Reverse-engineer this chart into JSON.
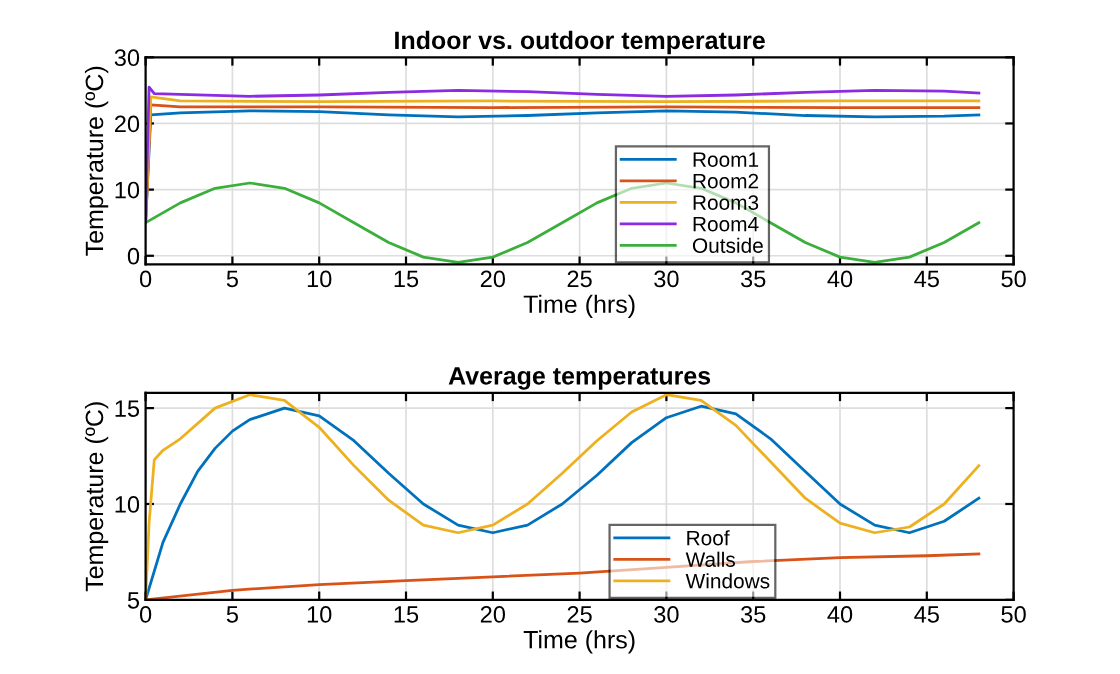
{
  "chart_data": [
    {
      "type": "line",
      "title": "Indoor vs. outdoor temperature",
      "xlabel": "Time (hrs)",
      "ylabel": "Temperature (ºC)",
      "xlim": [
        0,
        50
      ],
      "xticks": [
        0,
        5,
        10,
        15,
        20,
        25,
        30,
        35,
        40,
        45,
        50
      ],
      "ylim": [
        -1.3,
        30
      ],
      "yticks": [
        0,
        10,
        20,
        30
      ],
      "grid": true,
      "legend": "bottom",
      "series": [
        {
          "name": "Room1",
          "color": "#0072bd",
          "x": [
            0,
            0.3,
            2,
            6,
            10,
            14,
            18,
            22,
            26,
            30,
            34,
            38,
            42,
            46,
            48
          ],
          "values": [
            5,
            21.3,
            21.6,
            21.9,
            21.8,
            21.3,
            21.0,
            21.2,
            21.6,
            21.9,
            21.7,
            21.2,
            21.0,
            21.1,
            21.3
          ]
        },
        {
          "name": "Room2",
          "color": "#d95319",
          "x": [
            0,
            0.3,
            2,
            10,
            20,
            30,
            40,
            48
          ],
          "values": [
            5,
            22.8,
            22.5,
            22.5,
            22.4,
            22.5,
            22.4,
            22.4
          ]
        },
        {
          "name": "Room3",
          "color": "#edb120",
          "x": [
            0,
            0.3,
            2,
            10,
            20,
            30,
            40,
            48
          ],
          "values": [
            5,
            24,
            23.4,
            23.3,
            23.4,
            23.3,
            23.4,
            23.4
          ]
        },
        {
          "name": "Room4",
          "color": "#8b2be2",
          "x": [
            0,
            0.2,
            0.5,
            2,
            6,
            10,
            14,
            18,
            22,
            26,
            30,
            34,
            38,
            42,
            46,
            48
          ],
          "values": [
            5,
            25.5,
            24.5,
            24.4,
            24.1,
            24.3,
            24.7,
            25.0,
            24.8,
            24.4,
            24.1,
            24.3,
            24.7,
            25.0,
            24.9,
            24.6
          ]
        },
        {
          "name": "Outside",
          "color": "#3cae3c",
          "x": [
            0,
            2,
            4,
            6,
            8,
            10,
            12,
            14,
            16,
            18,
            20,
            22,
            24,
            26,
            28,
            30,
            32,
            34,
            36,
            38,
            40,
            42,
            44,
            46,
            48
          ],
          "values": [
            5,
            8,
            10.2,
            11,
            10.2,
            8,
            5,
            2,
            -0.2,
            -1,
            -0.2,
            2,
            5,
            8,
            10.2,
            11,
            10.2,
            8,
            5,
            2,
            -0.2,
            -1,
            -0.2,
            2,
            5
          ]
        }
      ]
    },
    {
      "type": "line",
      "title": "Average temperatures",
      "xlabel": "Time (hrs)",
      "ylabel": "Temperature (ºC)",
      "xlim": [
        0,
        50
      ],
      "xticks": [
        0,
        5,
        10,
        15,
        20,
        25,
        30,
        35,
        40,
        45,
        50
      ],
      "ylim": [
        5,
        15.8
      ],
      "yticks": [
        5,
        10,
        15
      ],
      "grid": true,
      "legend": "bottom",
      "series": [
        {
          "name": "Roof",
          "color": "#0072bd",
          "x": [
            0,
            1,
            2,
            3,
            4,
            5,
            6,
            8,
            10,
            12,
            14,
            16,
            18,
            20,
            22,
            24,
            26,
            28,
            30,
            32,
            34,
            36,
            38,
            40,
            42,
            44,
            46,
            48
          ],
          "values": [
            5,
            8,
            10,
            11.7,
            12.9,
            13.8,
            14.4,
            15,
            14.6,
            13.3,
            11.6,
            10,
            8.9,
            8.5,
            8.9,
            10,
            11.5,
            13.2,
            14.5,
            15.1,
            14.7,
            13.4,
            11.7,
            10,
            8.9,
            8.5,
            9.1,
            10.3
          ]
        },
        {
          "name": "Walls",
          "color": "#d95319",
          "x": [
            0,
            5,
            10,
            15,
            20,
            25,
            30,
            35,
            40,
            45,
            48
          ],
          "values": [
            5,
            5.5,
            5.8,
            6.0,
            6.2,
            6.4,
            6.7,
            7.0,
            7.2,
            7.3,
            7.4
          ]
        },
        {
          "name": "Windows",
          "color": "#edb120",
          "x": [
            0,
            0.2,
            0.5,
            1,
            2,
            4,
            6,
            8,
            10,
            12,
            14,
            16,
            18,
            20,
            22,
            24,
            26,
            28,
            30,
            32,
            34,
            36,
            38,
            40,
            42,
            44,
            46,
            48
          ],
          "values": [
            5,
            9,
            12.3,
            12.8,
            13.4,
            15,
            15.7,
            15.4,
            14,
            12,
            10.2,
            8.9,
            8.5,
            8.9,
            10,
            11.6,
            13.3,
            14.8,
            15.7,
            15.4,
            14.1,
            12.2,
            10.3,
            9,
            8.5,
            8.8,
            10,
            12
          ]
        }
      ]
    }
  ]
}
